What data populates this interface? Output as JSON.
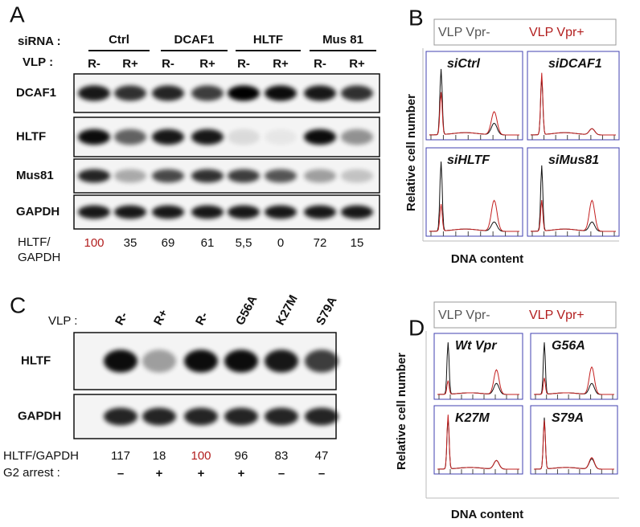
{
  "panel_a": {
    "label": "A",
    "sirna_label": "siRNA :",
    "groups": [
      "Ctrl",
      "DCAF1",
      "HLTF",
      "Mus 81"
    ],
    "vlp_label": "VLP :",
    "lanes": [
      "R-",
      "R+",
      "R-",
      "R+",
      "R-",
      "R+",
      "R-",
      "R+"
    ],
    "blots": [
      "DCAF1",
      "HLTF",
      "Mus81",
      "GAPDH"
    ],
    "ratio_label": [
      "HLTF/",
      "GAPDH"
    ],
    "ratios": [
      "100",
      "35",
      "69",
      "61",
      "5,5",
      "0",
      "72",
      "15"
    ]
  },
  "panel_b": {
    "label": "B",
    "legend": [
      "VLP Vpr-",
      "VLP Vpr+"
    ],
    "plots": [
      "siCtrl",
      "siDCAF1",
      "siHLTF",
      "siMus81"
    ],
    "y_label": "Relative cell number",
    "x_label": "DNA content"
  },
  "panel_c": {
    "label": "C",
    "vlp_label": "VLP :",
    "lanes": [
      "R-",
      "R+",
      "R-",
      "G56A",
      "K27M",
      "S79A"
    ],
    "blots": [
      "HLTF",
      "GAPDH"
    ],
    "ratio_label": "HLTF/GAPDH",
    "ratios": [
      "117",
      "18",
      "100",
      "96",
      "83",
      "47"
    ],
    "arrest_label": "G2 arrest :",
    "arrest": [
      "–",
      "+",
      "+",
      "+",
      "–",
      "–"
    ]
  },
  "panel_d": {
    "label": "D",
    "legend": [
      "VLP Vpr-",
      "VLP Vpr+"
    ],
    "plots": [
      "Wt Vpr",
      "G56A",
      "K27M",
      "S79A"
    ],
    "y_label": "Relative cell number",
    "x_label": "DNA content"
  }
}
